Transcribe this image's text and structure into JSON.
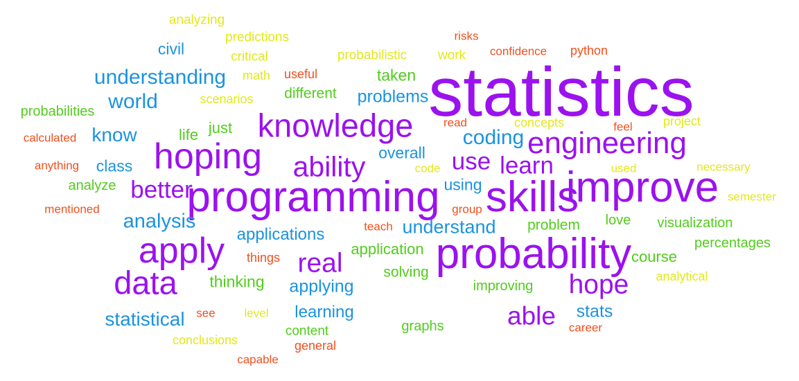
{
  "palette": {
    "purple": "#9b12ee",
    "blue": "#1a93e0",
    "green": "#52cc1c",
    "yellow": "#e3e81a",
    "orange": "#f0501e"
  },
  "words": [
    {
      "text": "statistics",
      "color": "purple",
      "weight": 1.0
    },
    {
      "text": "probability",
      "color": "purple",
      "weight": 0.62
    },
    {
      "text": "programming",
      "color": "purple",
      "weight": 0.62
    },
    {
      "text": "skills",
      "color": "purple",
      "weight": 0.62
    },
    {
      "text": "improve",
      "color": "purple",
      "weight": 0.62
    },
    {
      "text": "hoping",
      "color": "purple",
      "weight": 0.52
    },
    {
      "text": "apply",
      "color": "purple",
      "weight": 0.52
    },
    {
      "text": "data",
      "color": "purple",
      "weight": 0.47
    },
    {
      "text": "knowledge",
      "color": "purple",
      "weight": 0.47
    },
    {
      "text": "engineering",
      "color": "purple",
      "weight": 0.44
    },
    {
      "text": "ability",
      "color": "purple",
      "weight": 0.41
    },
    {
      "text": "real",
      "color": "purple",
      "weight": 0.39
    },
    {
      "text": "hope",
      "color": "purple",
      "weight": 0.39
    },
    {
      "text": "learn",
      "color": "purple",
      "weight": 0.35
    },
    {
      "text": "use",
      "color": "purple",
      "weight": 0.35
    },
    {
      "text": "better",
      "color": "purple",
      "weight": 0.35
    },
    {
      "text": "able",
      "color": "purple",
      "weight": 0.37
    },
    {
      "text": "understanding",
      "color": "blue",
      "weight": 0.3
    },
    {
      "text": "world",
      "color": "blue",
      "weight": 0.3
    },
    {
      "text": "know",
      "color": "blue",
      "weight": 0.28
    },
    {
      "text": "coding",
      "color": "blue",
      "weight": 0.3
    },
    {
      "text": "analysis",
      "color": "blue",
      "weight": 0.29
    },
    {
      "text": "statistical",
      "color": "blue",
      "weight": 0.28
    },
    {
      "text": "understand",
      "color": "blue",
      "weight": 0.27
    },
    {
      "text": "problems",
      "color": "blue",
      "weight": 0.25
    },
    {
      "text": "applying",
      "color": "blue",
      "weight": 0.25
    },
    {
      "text": "applications",
      "color": "blue",
      "weight": 0.24
    },
    {
      "text": "learning",
      "color": "blue",
      "weight": 0.24
    },
    {
      "text": "stats",
      "color": "blue",
      "weight": 0.25
    },
    {
      "text": "civil",
      "color": "blue",
      "weight": 0.23
    },
    {
      "text": "class",
      "color": "blue",
      "weight": 0.23
    },
    {
      "text": "overall",
      "color": "blue",
      "weight": 0.23
    },
    {
      "text": "using",
      "color": "blue",
      "weight": 0.23
    },
    {
      "text": "taken",
      "color": "green",
      "weight": 0.23
    },
    {
      "text": "different",
      "color": "green",
      "weight": 0.21
    },
    {
      "text": "just",
      "color": "green",
      "weight": 0.22
    },
    {
      "text": "life",
      "color": "green",
      "weight": 0.22
    },
    {
      "text": "probabilities",
      "color": "green",
      "weight": 0.2
    },
    {
      "text": "analyze",
      "color": "green",
      "weight": 0.2
    },
    {
      "text": "thinking",
      "color": "green",
      "weight": 0.23
    },
    {
      "text": "application",
      "color": "green",
      "weight": 0.22
    },
    {
      "text": "solving",
      "color": "green",
      "weight": 0.21
    },
    {
      "text": "problem",
      "color": "green",
      "weight": 0.21
    },
    {
      "text": "love",
      "color": "green",
      "weight": 0.2
    },
    {
      "text": "visualization",
      "color": "green",
      "weight": 0.2
    },
    {
      "text": "percentages",
      "color": "green",
      "weight": 0.2
    },
    {
      "text": "course",
      "color": "green",
      "weight": 0.22
    },
    {
      "text": "improving",
      "color": "green",
      "weight": 0.2
    },
    {
      "text": "graphs",
      "color": "green",
      "weight": 0.2
    },
    {
      "text": "content",
      "color": "green",
      "weight": 0.19
    },
    {
      "text": "analyzing",
      "color": "yellow",
      "weight": 0.19
    },
    {
      "text": "predictions",
      "color": "yellow",
      "weight": 0.19
    },
    {
      "text": "critical",
      "color": "yellow",
      "weight": 0.19
    },
    {
      "text": "probabilistic",
      "color": "yellow",
      "weight": 0.19
    },
    {
      "text": "work",
      "color": "yellow",
      "weight": 0.19
    },
    {
      "text": "math",
      "color": "yellow",
      "weight": 0.18
    },
    {
      "text": "scenarios",
      "color": "yellow",
      "weight": 0.18
    },
    {
      "text": "concepts",
      "color": "yellow",
      "weight": 0.18
    },
    {
      "text": "project",
      "color": "yellow",
      "weight": 0.18
    },
    {
      "text": "code",
      "color": "yellow",
      "weight": 0.17
    },
    {
      "text": "used",
      "color": "yellow",
      "weight": 0.17
    },
    {
      "text": "necessary",
      "color": "yellow",
      "weight": 0.17
    },
    {
      "text": "semester",
      "color": "yellow",
      "weight": 0.17
    },
    {
      "text": "analytical",
      "color": "yellow",
      "weight": 0.18
    },
    {
      "text": "level",
      "color": "yellow",
      "weight": 0.17
    },
    {
      "text": "conclusions",
      "color": "yellow",
      "weight": 0.18
    },
    {
      "text": "risks",
      "color": "orange",
      "weight": 0.17
    },
    {
      "text": "confidence",
      "color": "orange",
      "weight": 0.17
    },
    {
      "text": "python",
      "color": "orange",
      "weight": 0.18
    },
    {
      "text": "useful",
      "color": "orange",
      "weight": 0.18
    },
    {
      "text": "calculated",
      "color": "orange",
      "weight": 0.17
    },
    {
      "text": "anything",
      "color": "orange",
      "weight": 0.17
    },
    {
      "text": "mentioned",
      "color": "orange",
      "weight": 0.17
    },
    {
      "text": "read",
      "color": "orange",
      "weight": 0.17
    },
    {
      "text": "feel",
      "color": "orange",
      "weight": 0.17
    },
    {
      "text": "group",
      "color": "orange",
      "weight": 0.17
    },
    {
      "text": "teach",
      "color": "orange",
      "weight": 0.17
    },
    {
      "text": "things",
      "color": "orange",
      "weight": 0.18
    },
    {
      "text": "see",
      "color": "orange",
      "weight": 0.17
    },
    {
      "text": "career",
      "color": "orange",
      "weight": 0.17
    },
    {
      "text": "general",
      "color": "orange",
      "weight": 0.18
    },
    {
      "text": "capable",
      "color": "orange",
      "weight": 0.17
    }
  ]
}
